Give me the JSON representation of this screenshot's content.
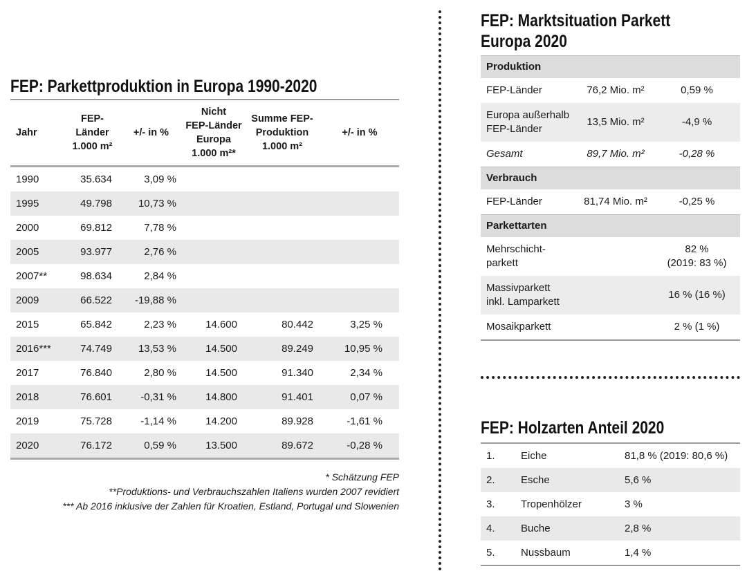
{
  "left": {
    "title": "FEP: Parkettproduktion in Europa 1990-2020",
    "header": [
      "Jahr",
      "FEP-\nLänder\n1.000 m²",
      "+/- in %",
      "Nicht\nFEP-Länder\nEuropa\n1.000 m²*",
      "Summe FEP-\nProduktion\n1.000 m²",
      "+/- in %"
    ],
    "rows": [
      [
        "1990",
        "35.634",
        "3,09 %"
      ],
      [
        "1995",
        "49.798",
        "10,73 %"
      ],
      [
        "2000",
        "69.812",
        "7,78 %"
      ],
      [
        "2005",
        "93.977",
        "2,76 %"
      ],
      [
        "2007**",
        "98.634",
        "2,84 %"
      ],
      [
        "2009",
        "66.522",
        "-19,88 %"
      ],
      [
        "2015",
        "65.842",
        "2,23 %",
        "14.600",
        "80.442",
        "3,25 %"
      ],
      [
        "2016***",
        "74.749",
        "13,53 %",
        "14.500",
        "89.249",
        "10,95 %"
      ],
      [
        "2017",
        "76.840",
        "2,80 %",
        "14.500",
        "91.340",
        "2,34 %"
      ],
      [
        "2018",
        "76.601",
        "-0,31 %",
        "14.800",
        "91.401",
        "0,07 %"
      ],
      [
        "2019",
        "75.728",
        "-1,14 %",
        "14.200",
        "89.928",
        "-1,61 %"
      ],
      [
        "2020",
        "76.172",
        "0,59 %",
        "13.500",
        "89.672",
        "-0,28 %"
      ]
    ],
    "footnotes": [
      "* Schätzung FEP",
      "**Produktions- und Verbrauchszahlen Italiens wurden 2007 revidiert",
      "*** Ab 2016 inklusive der Zahlen für Kroatien, Estland, Portugal und Slowenien"
    ]
  },
  "market": {
    "title": "FEP: Marktsituation Parkett Europa 2020",
    "sections": [
      {
        "heading": "Produktion",
        "rows": [
          [
            "FEP-Länder",
            "76,2 Mio. m²",
            "0,59 %"
          ],
          [
            "Europa außerhalb\nFEP-Länder",
            "13,5 Mio. m²",
            "-4,9 %"
          ],
          [
            "Gesamt",
            "89,7 Mio. m²",
            "-0,28 %"
          ]
        ]
      },
      {
        "heading": "Verbrauch",
        "rows": [
          [
            "FEP-Länder",
            "81,74 Mio. m²",
            "-0,25 %"
          ]
        ]
      },
      {
        "heading": "Parkettarten",
        "rows": [
          [
            "Mehrschicht-\nparkett",
            "82 %\n(2019: 83 %)"
          ],
          [
            "Massivparkett\ninkl. Lamparkett",
            "16 % (16 %)"
          ],
          [
            "Mosaikparkett",
            "2 % (1 %)"
          ]
        ]
      }
    ]
  },
  "wood": {
    "title": "FEP: Holzarten Anteil 2020",
    "rows": [
      [
        "1.",
        "Eiche",
        "81,8 % (2019: 80,6 %)"
      ],
      [
        "2.",
        "Esche",
        "5,6 %"
      ],
      [
        "3.",
        "Tropenhölzer",
        "3 %"
      ],
      [
        "4.",
        "Buche",
        "2,8 %"
      ],
      [
        "5.",
        "Nussbaum",
        "1,4 %"
      ]
    ]
  }
}
